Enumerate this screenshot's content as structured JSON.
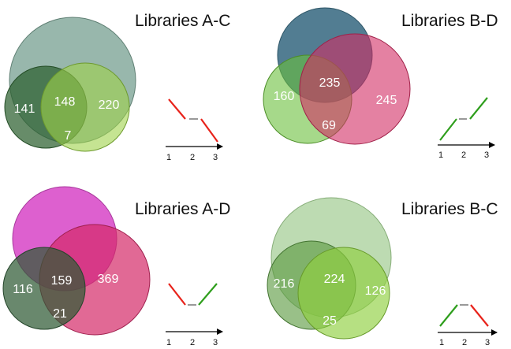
{
  "colors": {
    "red": "#e8231b",
    "green": "#2e9e1c",
    "gray": "#9a9a9a",
    "axis": "#000000"
  },
  "panels": [
    {
      "title": "Libraries A-C",
      "counts": {
        "left": "141",
        "center": "148",
        "right": "220",
        "bottom": "7"
      },
      "trend": [
        "down",
        "flat",
        "down"
      ],
      "axis_ticks": [
        "1",
        "2",
        "3"
      ]
    },
    {
      "title": "Libraries B-D",
      "counts": {
        "left": "160",
        "center": "235",
        "right": "245",
        "bottom": "69"
      },
      "trend": [
        "up",
        "flat",
        "up"
      ],
      "axis_ticks": [
        "1",
        "2",
        "3"
      ]
    },
    {
      "title": "Libraries A-D",
      "counts": {
        "left": "116",
        "center": "159",
        "right": "369",
        "bottom": "21"
      },
      "trend": [
        "down",
        "flat",
        "up"
      ],
      "axis_ticks": [
        "1",
        "2",
        "3"
      ]
    },
    {
      "title": "Libraries B-C",
      "counts": {
        "left": "216",
        "center": "224",
        "right": "126",
        "bottom": "25"
      },
      "trend": [
        "up",
        "flat",
        "down"
      ],
      "axis_ticks": [
        "1",
        "2",
        "3"
      ]
    }
  ]
}
